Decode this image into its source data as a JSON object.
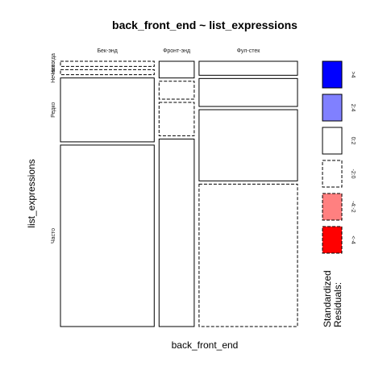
{
  "chart_data": {
    "type": "mosaic",
    "title": "back_front_end ~ list_expressions",
    "xlabel": "back_front_end",
    "ylabel": "list_expressions",
    "columns": [
      {
        "name": "Бек-энд",
        "share": 0.4
      },
      {
        "name": "Фронт-энд",
        "share": 0.15
      },
      {
        "name": "Фул-стек",
        "share": 0.42
      }
    ],
    "rows": [
      {
        "name": "Никогда",
        "label": "Никогда"
      },
      {
        "name": "Нечасто",
        "label": "Нечасто"
      },
      {
        "name": "Редко",
        "label": "Редко"
      },
      {
        "name": "Часто",
        "label": "Часто"
      }
    ],
    "row_labels_note": "Never/Rarely labels overlap in original",
    "cells": [
      [
        {
          "share": 0.02,
          "residual_band": "-2:0"
        },
        {
          "share": 0.065,
          "residual_band": "0:2"
        },
        {
          "share": 0.055,
          "residual_band": "0:2"
        }
      ],
      [
        {
          "share": 0.02,
          "residual_band": "-2:0"
        },
        {
          "share": 0.07,
          "residual_band": "-2:0"
        },
        {
          "share": 0.11,
          "residual_band": "0:2"
        }
      ],
      [
        {
          "share": 0.25,
          "residual_band": "0:2"
        },
        {
          "share": 0.13,
          "residual_band": "-2:0"
        },
        {
          "share": 0.28,
          "residual_band": "0:2"
        }
      ],
      [
        {
          "share": 0.71,
          "residual_band": "0:2"
        },
        {
          "share": 0.73,
          "residual_band": "0:2"
        },
        {
          "share": 0.56,
          "residual_band": "-2:0"
        }
      ]
    ],
    "legend": {
      "title": "Standardized\nResiduals:",
      "entries": [
        {
          "label": ">4",
          "fill": "#0000ff",
          "dashed": false
        },
        {
          "label": "2:4",
          "fill": "#8080ff",
          "dashed": false
        },
        {
          "label": "0:2",
          "fill": "#ffffff",
          "dashed": false
        },
        {
          "label": "-2:0",
          "fill": "#ffffff",
          "dashed": true
        },
        {
          "label": "-4:-2",
          "fill": "#ff8080",
          "dashed": true
        },
        {
          "label": "<-4",
          "fill": "#ff0000",
          "dashed": true
        }
      ]
    }
  }
}
